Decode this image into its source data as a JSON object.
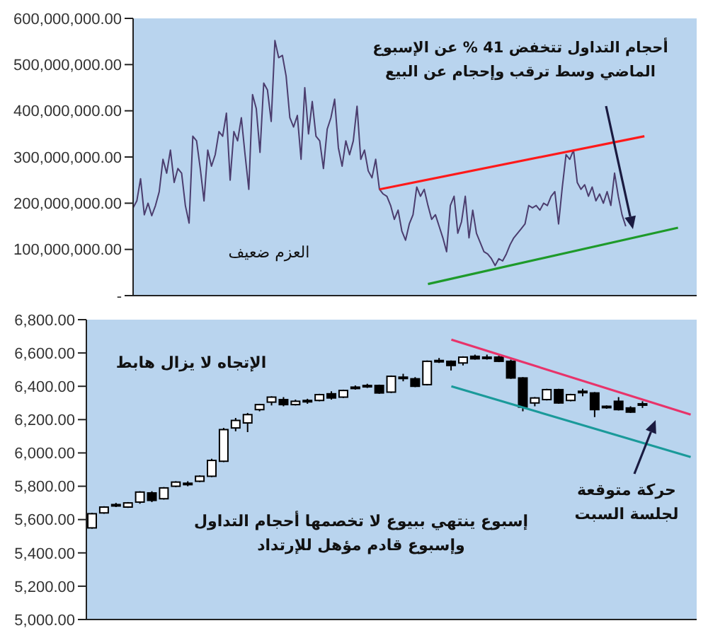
{
  "chart_data": [
    {
      "type": "line",
      "ylim": [
        0,
        600000000
      ],
      "yticks": [
        {
          "value": 0,
          "label": "-"
        },
        {
          "value": 100000000,
          "label": "100,000,000.00"
        },
        {
          "value": 200000000,
          "label": "200,000,000.00"
        },
        {
          "value": 300000000,
          "label": "300,000,000.00"
        },
        {
          "value": 400000000,
          "label": "400,000,000.00"
        },
        {
          "value": 500000000,
          "label": "500,000,000.00"
        },
        {
          "value": 600000000,
          "label": "600,000,000.00"
        }
      ],
      "categories": [
        null,
        null,
        null,
        null,
        null,
        null,
        null,
        null,
        null,
        null,
        null,
        null,
        null,
        null,
        null,
        null,
        null,
        null,
        null,
        null,
        null,
        null,
        null,
        null,
        null,
        null,
        null,
        null,
        null,
        null,
        null,
        null,
        null,
        null,
        null,
        null,
        null,
        null,
        null,
        null,
        null,
        null,
        null,
        null,
        null,
        null,
        null,
        null,
        null,
        null,
        null,
        null,
        null,
        null,
        null,
        null,
        null,
        null,
        null,
        null,
        null,
        null,
        null,
        null,
        null,
        null,
        null,
        null,
        null,
        null,
        null,
        null,
        null,
        null,
        null,
        null,
        null,
        null,
        null,
        null,
        null,
        null,
        null,
        null,
        null,
        null,
        null,
        null,
        null,
        null,
        null,
        null,
        null,
        null,
        null,
        null,
        null,
        null,
        null,
        null,
        null,
        null,
        null,
        null,
        null,
        null,
        null,
        null,
        null,
        null,
        null,
        null,
        null,
        null,
        null,
        null,
        null,
        null,
        null,
        null,
        null,
        null,
        null,
        null,
        null,
        null,
        null,
        null,
        null,
        null,
        null,
        null,
        null,
        null,
        null,
        null,
        null,
        null,
        null,
        null,
        null,
        null,
        null,
        null,
        null,
        null,
        null,
        null,
        null,
        null,
        null,
        null
      ],
      "series": [
        {
          "color": "#4b3d6e",
          "values": [
            190000000,
            205000000,
            253000000,
            175000000,
            200000000,
            173000000,
            195000000,
            225000000,
            295000000,
            265000000,
            315000000,
            245000000,
            275000000,
            265000000,
            195000000,
            157000000,
            345000000,
            335000000,
            275000000,
            205000000,
            315000000,
            280000000,
            305000000,
            355000000,
            345000000,
            395000000,
            250000000,
            355000000,
            335000000,
            385000000,
            305000000,
            230000000,
            435000000,
            405000000,
            310000000,
            460000000,
            445000000,
            377000000,
            552000000,
            515000000,
            520000000,
            475000000,
            385000000,
            365000000,
            390000000,
            295000000,
            450000000,
            350000000,
            420000000,
            345000000,
            335000000,
            275000000,
            360000000,
            385000000,
            425000000,
            320000000,
            280000000,
            335000000,
            305000000,
            335000000,
            410000000,
            295000000,
            315000000,
            270000000,
            255000000,
            295000000,
            230000000,
            220000000,
            215000000,
            195000000,
            165000000,
            185000000,
            140000000,
            120000000,
            155000000,
            175000000,
            235000000,
            215000000,
            230000000,
            195000000,
            165000000,
            175000000,
            150000000,
            125000000,
            95000000,
            195000000,
            215000000,
            135000000,
            160000000,
            215000000,
            125000000,
            185000000,
            135000000,
            115000000,
            95000000,
            90000000,
            80000000,
            65000000,
            80000000,
            75000000,
            90000000,
            110000000,
            125000000,
            135000000,
            145000000,
            155000000,
            195000000,
            190000000,
            195000000,
            185000000,
            200000000,
            195000000,
            215000000,
            225000000,
            155000000,
            235000000,
            305000000,
            295000000,
            315000000,
            245000000,
            230000000,
            240000000,
            215000000,
            235000000,
            205000000,
            220000000,
            200000000,
            225000000,
            195000000,
            265000000,
            215000000,
            175000000,
            150000000,
            null,
            null,
            null,
            null,
            null,
            null,
            null,
            null,
            null,
            null,
            null,
            null,
            null,
            null,
            null,
            null,
            null,
            null,
            null
          ]
        },
        {
          "type": "line",
          "color": "#ff1a1a",
          "values": [
            null,
            null,
            null,
            null,
            null,
            null,
            null,
            null,
            null,
            null,
            null,
            null,
            null,
            null,
            null,
            null,
            null,
            null,
            null,
            null,
            null,
            null,
            null,
            null,
            null,
            null,
            null,
            null,
            null,
            null,
            null,
            null,
            null,
            null,
            null,
            null,
            null,
            null,
            null,
            null,
            null,
            null,
            null,
            null,
            null,
            null,
            null,
            null,
            null,
            null,
            null,
            null,
            null,
            null,
            null,
            null,
            null,
            null,
            null,
            null,
            null,
            null,
            null,
            null,
            null,
            null,
            230000000,
            null,
            null,
            null,
            null,
            null,
            null,
            null,
            null,
            null,
            null,
            null,
            null,
            null,
            null,
            null,
            null,
            null,
            null,
            null,
            null,
            null,
            null,
            null,
            null,
            null,
            null,
            null,
            null,
            null,
            null,
            null,
            null,
            null,
            null,
            null,
            null,
            null,
            null,
            null,
            null,
            null,
            null,
            null,
            null,
            null,
            null,
            null,
            null,
            null,
            null,
            null,
            null,
            null,
            null,
            null,
            null,
            null,
            null,
            null,
            null,
            null,
            null,
            null,
            null,
            null,
            null,
            null,
            null,
            null,
            null,
            345000000,
            null,
            null,
            null,
            null,
            null,
            null,
            null,
            null,
            null,
            null,
            null,
            null,
            null,
            null
          ]
        },
        {
          "type": "line",
          "color": "#1e9a2a",
          "values": [
            null,
            null,
            null,
            null,
            null,
            null,
            null,
            null,
            null,
            null,
            null,
            null,
            null,
            null,
            null,
            null,
            null,
            null,
            null,
            null,
            null,
            null,
            null,
            null,
            null,
            null,
            null,
            null,
            null,
            null,
            null,
            null,
            null,
            null,
            null,
            null,
            null,
            null,
            null,
            null,
            null,
            null,
            null,
            null,
            null,
            null,
            null,
            null,
            null,
            null,
            null,
            null,
            null,
            null,
            null,
            null,
            null,
            null,
            null,
            null,
            null,
            null,
            null,
            null,
            null,
            null,
            null,
            null,
            null,
            null,
            null,
            null,
            null,
            null,
            null,
            null,
            null,
            null,
            null,
            25000000,
            null,
            null,
            null,
            null,
            null,
            null,
            null,
            null,
            null,
            null,
            null,
            null,
            null,
            null,
            null,
            null,
            null,
            null,
            null,
            null,
            null,
            null,
            null,
            null,
            null,
            null,
            null,
            null,
            null,
            null,
            null,
            null,
            null,
            null,
            null,
            null,
            null,
            null,
            null,
            null,
            null,
            null,
            null,
            null,
            null,
            null,
            null,
            null,
            null,
            null,
            null,
            null,
            null,
            null,
            null,
            null,
            null,
            null,
            null,
            null,
            null,
            null,
            null,
            null,
            null,
            null,
            147000000,
            null,
            null,
            null,
            null,
            null
          ]
        }
      ],
      "annotations": [
        "أحجام التداول تتخفض 41 % عن الإسبوع\nالماضي وسط ترقب وإحجام عن البيع",
        "العزم ضعيف"
      ]
    },
    {
      "type": "candlestick",
      "ylim": [
        5000,
        6800
      ],
      "yticks": [
        {
          "value": 5000,
          "label": "5,000.00"
        },
        {
          "value": 5200,
          "label": "5,200.00"
        },
        {
          "value": 5400,
          "label": "5,400.00"
        },
        {
          "value": 5600,
          "label": "5,600.00"
        },
        {
          "value": 5800,
          "label": "5,800.00"
        },
        {
          "value": 6000,
          "label": "6,000.00"
        },
        {
          "value": 6200,
          "label": "6,200.00"
        },
        {
          "value": 6400,
          "label": "6,400.00"
        },
        {
          "value": 6600,
          "label": "6,600.00"
        },
        {
          "value": 6800,
          "label": "6,800.00"
        }
      ],
      "categories": [
        null,
        null,
        null,
        null,
        null,
        null,
        null,
        null,
        null,
        null,
        null,
        null,
        null,
        null,
        null,
        null,
        null,
        null,
        null,
        null,
        null,
        null,
        null,
        null,
        null,
        null,
        null,
        null,
        null,
        null,
        null,
        null,
        null,
        null,
        null,
        null,
        null,
        null,
        null,
        null,
        null,
        null,
        null,
        null,
        null,
        null,
        null,
        null,
        null,
        null,
        null
      ],
      "ohlc": [
        [
          5550,
          5640,
          5545,
          5635
        ],
        [
          5640,
          5680,
          5635,
          5675
        ],
        [
          5685,
          5700,
          5675,
          5690
        ],
        [
          5675,
          5705,
          5670,
          5700
        ],
        [
          5705,
          5770,
          5695,
          5765
        ],
        [
          5760,
          5770,
          5705,
          5715
        ],
        [
          5725,
          5795,
          5720,
          5790
        ],
        [
          5800,
          5830,
          5795,
          5825
        ],
        [
          5815,
          5830,
          5800,
          5818
        ],
        [
          5830,
          5865,
          5825,
          5860
        ],
        [
          5860,
          5965,
          5855,
          5955
        ],
        [
          5950,
          6150,
          5945,
          6140
        ],
        [
          6150,
          6210,
          6130,
          6195
        ],
        [
          6180,
          6240,
          6125,
          6230
        ],
        [
          6260,
          6295,
          6250,
          6290
        ],
        [
          6305,
          6340,
          6285,
          6335
        ],
        [
          6320,
          6335,
          6280,
          6290
        ],
        [
          6290,
          6320,
          6285,
          6310
        ],
        [
          6310,
          6325,
          6295,
          6315
        ],
        [
          6315,
          6355,
          6310,
          6350
        ],
        [
          6355,
          6370,
          6320,
          6330
        ],
        [
          6335,
          6380,
          6330,
          6375
        ],
        [
          6390,
          6405,
          6380,
          6395
        ],
        [
          6400,
          6415,
          6390,
          6405
        ],
        [
          6405,
          6410,
          6355,
          6360
        ],
        [
          6365,
          6465,
          6360,
          6460
        ],
        [
          6450,
          6475,
          6430,
          6455
        ],
        [
          6445,
          6455,
          6395,
          6400
        ],
        [
          6410,
          6555,
          6405,
          6550
        ],
        [
          6550,
          6570,
          6540,
          6555
        ],
        [
          6550,
          6555,
          6495,
          6525
        ],
        [
          6540,
          6580,
          6525,
          6575
        ],
        [
          6580,
          6590,
          6560,
          6565
        ],
        [
          6570,
          6590,
          6560,
          6575
        ],
        [
          6575,
          6585,
          6545,
          6550
        ],
        [
          6550,
          6560,
          6445,
          6450
        ],
        [
          6450,
          6455,
          6250,
          6275
        ],
        [
          6300,
          6335,
          6280,
          6330
        ],
        [
          6320,
          6385,
          6315,
          6380
        ],
        [
          6380,
          6385,
          6295,
          6300
        ],
        [
          6315,
          6355,
          6310,
          6350
        ],
        [
          6365,
          6385,
          6340,
          6370
        ],
        [
          6360,
          6365,
          6215,
          6260
        ],
        [
          6275,
          6285,
          6265,
          6280
        ],
        [
          6310,
          6335,
          6255,
          6260
        ],
        [
          6270,
          6280,
          6240,
          6245
        ],
        [
          6290,
          6310,
          6270,
          6295
        ],
        null,
        null,
        null,
        null
      ],
      "series": [
        {
          "type": "line",
          "color": "#e8336a",
          "values": [
            null,
            null,
            null,
            null,
            null,
            null,
            null,
            null,
            null,
            null,
            null,
            null,
            null,
            null,
            null,
            null,
            null,
            null,
            null,
            null,
            null,
            null,
            null,
            null,
            null,
            null,
            null,
            null,
            null,
            null,
            6680,
            null,
            null,
            null,
            null,
            null,
            null,
            null,
            null,
            null,
            null,
            null,
            null,
            null,
            null,
            null,
            null,
            null,
            null,
            null,
            6230
          ]
        },
        {
          "type": "line",
          "color": "#1a9a9a",
          "values": [
            null,
            null,
            null,
            null,
            null,
            null,
            null,
            null,
            null,
            null,
            null,
            null,
            null,
            null,
            null,
            null,
            null,
            null,
            null,
            null,
            null,
            null,
            null,
            null,
            null,
            null,
            null,
            null,
            null,
            null,
            6400,
            null,
            null,
            null,
            null,
            null,
            null,
            null,
            null,
            null,
            null,
            null,
            null,
            null,
            null,
            null,
            null,
            null,
            null,
            null,
            5975
          ]
        }
      ],
      "annotations": [
        "الإتجاه لا يزال هابط",
        "إسبوع ينتهي ببيوع لا تخصمها أحجام التداول\nوإسبوع قادم مؤهل للإرتداد",
        "حركة متوقعة\nلجلسة السبت"
      ]
    }
  ]
}
